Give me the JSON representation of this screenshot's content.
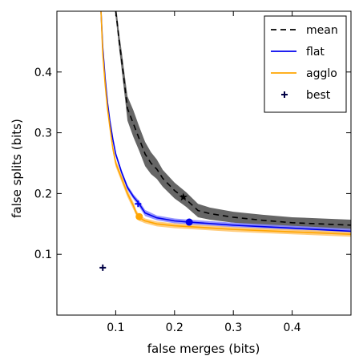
{
  "chart_data": {
    "type": "line",
    "xlabel": "false merges (bits)",
    "ylabel": "false splits (bits)",
    "xlim": [
      0.0,
      0.5
    ],
    "ylim": [
      0.0,
      0.5
    ],
    "x_ticks": [
      0.1,
      0.2,
      0.3,
      0.4
    ],
    "x_tick_labels": [
      "0.1",
      "0.2",
      "0.3",
      "0.4"
    ],
    "y_ticks": [
      0.1,
      0.2,
      0.3,
      0.4
    ],
    "y_tick_labels": [
      "0.1",
      "0.2",
      "0.3",
      "0.4"
    ],
    "grid": false,
    "legend_position": "top-right",
    "series": [
      {
        "name": "mean",
        "color": "#000000",
        "style": "dashed",
        "band_color": "#555555",
        "x": [
          0.1,
          0.102,
          0.106,
          0.11,
          0.115,
          0.12,
          0.13,
          0.14,
          0.15,
          0.16,
          0.17,
          0.18,
          0.2,
          0.22,
          0.24,
          0.26,
          0.3,
          0.35,
          0.4,
          0.45,
          0.5
        ],
        "y": [
          0.5,
          0.485,
          0.45,
          0.42,
          0.38,
          0.34,
          0.315,
          0.29,
          0.265,
          0.25,
          0.24,
          0.225,
          0.205,
          0.19,
          0.172,
          0.167,
          0.161,
          0.156,
          0.152,
          0.15,
          0.148
        ],
        "band": [
          0.01,
          0.012,
          0.013,
          0.015,
          0.017,
          0.02,
          0.022,
          0.02,
          0.02,
          0.018,
          0.016,
          0.014,
          0.013,
          0.012,
          0.011,
          0.01,
          0.009,
          0.009,
          0.009,
          0.009,
          0.009
        ],
        "marker": {
          "x": 0.215,
          "y": 0.194,
          "shape": "star"
        }
      },
      {
        "name": "flat",
        "color": "#0000ee",
        "style": "solid",
        "band_color": "#8888ff",
        "x": [
          0.075,
          0.078,
          0.082,
          0.086,
          0.09,
          0.095,
          0.1,
          0.11,
          0.12,
          0.13,
          0.14,
          0.15,
          0.17,
          0.2,
          0.225,
          0.3,
          0.4,
          0.5
        ],
        "y": [
          0.5,
          0.44,
          0.39,
          0.35,
          0.32,
          0.29,
          0.265,
          0.235,
          0.21,
          0.195,
          0.183,
          0.168,
          0.16,
          0.155,
          0.153,
          0.148,
          0.143,
          0.138
        ],
        "band": [
          0.003,
          0.003,
          0.003,
          0.003,
          0.003,
          0.003,
          0.004,
          0.004,
          0.004,
          0.004,
          0.005,
          0.005,
          0.004,
          0.004,
          0.004,
          0.004,
          0.004,
          0.004
        ],
        "markers": [
          {
            "x": 0.138,
            "y": 0.183,
            "shape": "plus"
          },
          {
            "x": 0.225,
            "y": 0.153,
            "shape": "dot"
          }
        ]
      },
      {
        "name": "agglo",
        "color": "#ffa500",
        "style": "solid",
        "band_color": "#ffc870",
        "x": [
          0.075,
          0.078,
          0.082,
          0.086,
          0.09,
          0.095,
          0.1,
          0.11,
          0.12,
          0.13,
          0.135,
          0.14,
          0.15,
          0.17,
          0.2,
          0.25,
          0.3,
          0.4,
          0.5
        ],
        "y": [
          0.5,
          0.43,
          0.38,
          0.34,
          0.31,
          0.275,
          0.25,
          0.225,
          0.2,
          0.18,
          0.168,
          0.16,
          0.155,
          0.15,
          0.147,
          0.144,
          0.141,
          0.137,
          0.133
        ],
        "band": [
          0.004,
          0.004,
          0.004,
          0.004,
          0.004,
          0.005,
          0.006,
          0.006,
          0.006,
          0.006,
          0.005,
          0.005,
          0.004,
          0.004,
          0.004,
          0.004,
          0.004,
          0.004,
          0.004
        ],
        "markers": [
          {
            "x": 0.14,
            "y": 0.162,
            "shape": "dot"
          }
        ]
      },
      {
        "name": "best",
        "color": "#000044",
        "style": "marker",
        "points": [
          {
            "x": 0.078,
            "y": 0.078
          }
        ]
      }
    ]
  }
}
